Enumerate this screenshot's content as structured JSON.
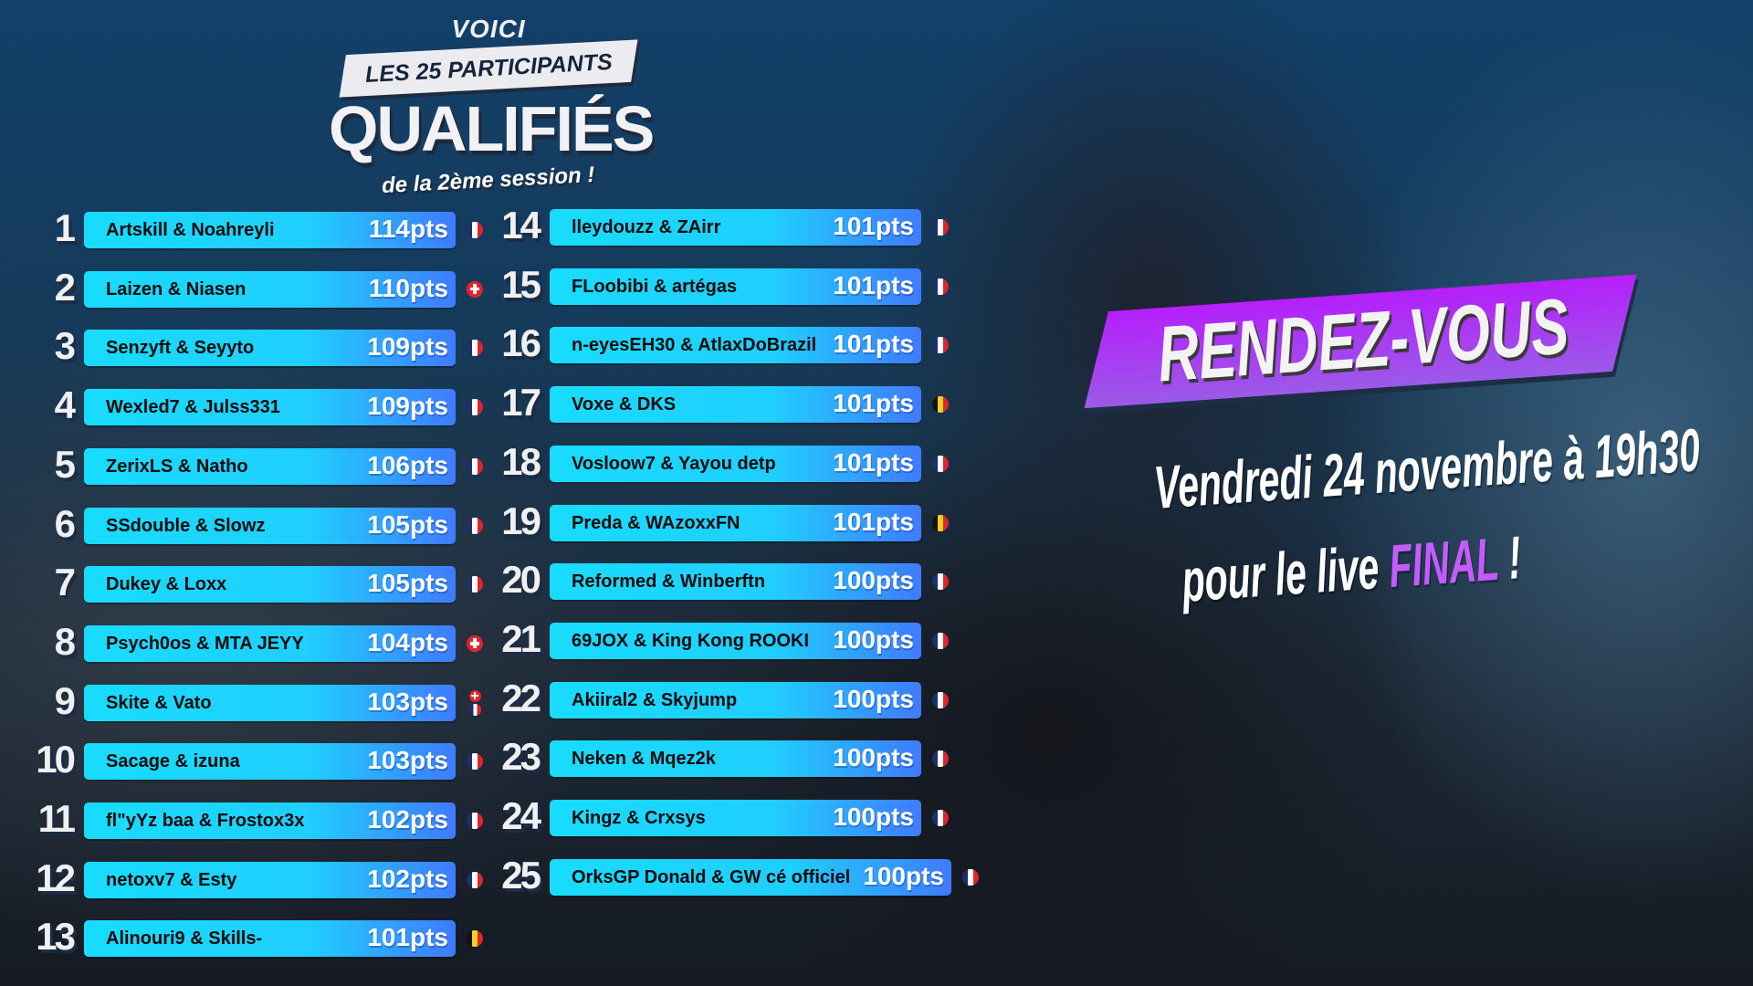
{
  "header": {
    "voici": "VOICI",
    "ribbon": "LES 25 PARTICIPANTS",
    "title": "QUALIFIÉS",
    "subtitle": "de la 2ème session !"
  },
  "participants": [
    {
      "rank": "1",
      "name": "Artskill & Noahreyli",
      "points": "114pts",
      "flags": [
        "fr"
      ]
    },
    {
      "rank": "2",
      "name": "Laizen & Niasen",
      "points": "110pts",
      "flags": [
        "ch"
      ]
    },
    {
      "rank": "3",
      "name": "Senzyft & Seyyto",
      "points": "109pts",
      "flags": [
        "fr"
      ]
    },
    {
      "rank": "4",
      "name": "Wexled7 & Julss331",
      "points": "109pts",
      "flags": [
        "fr"
      ]
    },
    {
      "rank": "5",
      "name": "ZerixLS & Natho",
      "points": "106pts",
      "flags": [
        "fr"
      ]
    },
    {
      "rank": "6",
      "name": "SSdouble & Slowz",
      "points": "105pts",
      "flags": [
        "fr"
      ]
    },
    {
      "rank": "7",
      "name": "Dukey & Loxx",
      "points": "105pts",
      "flags": [
        "fr"
      ]
    },
    {
      "rank": "8",
      "name": "Psych0os & MTA JEYY",
      "points": "104pts",
      "flags": [
        "ch"
      ]
    },
    {
      "rank": "9",
      "name": "Skite & Vato",
      "points": "103pts",
      "flags": [
        "ch",
        "fr"
      ]
    },
    {
      "rank": "10",
      "name": "Sacage & izuna",
      "points": "103pts",
      "flags": [
        "fr"
      ]
    },
    {
      "rank": "11",
      "name": "fl\"yYz baa & Frostox3x",
      "points": "102pts",
      "flags": [
        "fr"
      ]
    },
    {
      "rank": "12",
      "name": "netoxv7 & Esty",
      "points": "102pts",
      "flags": [
        "fr"
      ]
    },
    {
      "rank": "13",
      "name": "Alinouri9 & Skills-",
      "points": "101pts",
      "flags": [
        "be"
      ]
    },
    {
      "rank": "14",
      "name": "lleydouzz & ZAirr",
      "points": "101pts",
      "flags": [
        "fr"
      ]
    },
    {
      "rank": "15",
      "name": "FLoobibi & artégas",
      "points": "101pts",
      "flags": [
        "fr"
      ]
    },
    {
      "rank": "16",
      "name": "n-eyesEH30 & AtlaxDoBrazil",
      "points": "101pts",
      "flags": [
        "fr"
      ]
    },
    {
      "rank": "17",
      "name": "Voxe & DKS",
      "points": "101pts",
      "flags": [
        "be"
      ]
    },
    {
      "rank": "18",
      "name": "Vosloow7 & Yayou detp",
      "points": "101pts",
      "flags": [
        "fr"
      ]
    },
    {
      "rank": "19",
      "name": "Preda & WAzoxxFN",
      "points": "101pts",
      "flags": [
        "be"
      ]
    },
    {
      "rank": "20",
      "name": "Reformed & Winberftn",
      "points": "100pts",
      "flags": [
        "fr"
      ]
    },
    {
      "rank": "21",
      "name": "69JOX & King Kong ROOKI",
      "points": "100pts",
      "flags": [
        "fr"
      ]
    },
    {
      "rank": "22",
      "name": "Akiiral2 & Skyjump",
      "points": "100pts",
      "flags": [
        "fr"
      ]
    },
    {
      "rank": "23",
      "name": "Neken & Mqez2k",
      "points": "100pts",
      "flags": [
        "fr"
      ]
    },
    {
      "rank": "24",
      "name": "Kingz & Crxsys",
      "points": "100pts",
      "flags": [
        "fr"
      ]
    },
    {
      "rank": "25",
      "name": "OrksGP Donald & GW cé officiel",
      "points": "100pts",
      "flags": [
        "fr"
      ]
    }
  ],
  "announcement": {
    "banner": "RENDEZ-VOUS",
    "line1": "Vendredi 24 novembre à 19h30",
    "line2_prefix": "pour le live",
    "line2_highlight": "FINAL",
    "line2_suffix": "!",
    "highlight_color": "#c45bff",
    "banner_color": "#a93cf5"
  },
  "colors": {
    "bar_start": "#18dcff",
    "bar_end": "#3f7bff"
  }
}
